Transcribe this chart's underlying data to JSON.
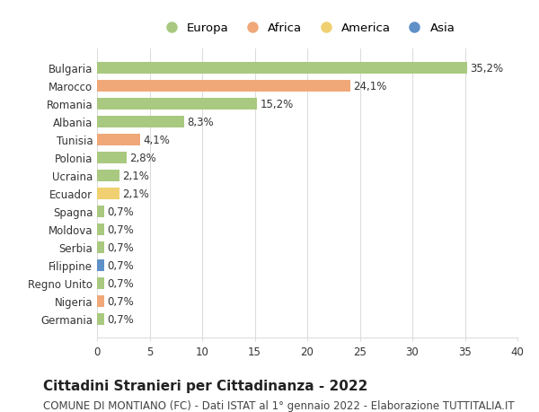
{
  "categories": [
    "Bulgaria",
    "Marocco",
    "Romania",
    "Albania",
    "Tunisia",
    "Polonia",
    "Ucraina",
    "Ecuador",
    "Spagna",
    "Moldova",
    "Serbia",
    "Filippine",
    "Regno Unito",
    "Nigeria",
    "Germania"
  ],
  "values": [
    35.2,
    24.1,
    15.2,
    8.3,
    4.1,
    2.8,
    2.1,
    2.1,
    0.7,
    0.7,
    0.7,
    0.7,
    0.7,
    0.7,
    0.7
  ],
  "labels": [
    "35,2%",
    "24,1%",
    "15,2%",
    "8,3%",
    "4,1%",
    "2,8%",
    "2,1%",
    "2,1%",
    "0,7%",
    "0,7%",
    "0,7%",
    "0,7%",
    "0,7%",
    "0,7%",
    "0,7%"
  ],
  "continents": [
    "Europa",
    "Africa",
    "Europa",
    "Europa",
    "Africa",
    "Europa",
    "Europa",
    "America",
    "Europa",
    "Europa",
    "Europa",
    "Asia",
    "Europa",
    "Africa",
    "Europa"
  ],
  "continent_colors": {
    "Europa": "#a8c97f",
    "Africa": "#f0a878",
    "America": "#f0d070",
    "Asia": "#6090c8"
  },
  "legend_order": [
    "Europa",
    "Africa",
    "America",
    "Asia"
  ],
  "title": "Cittadini Stranieri per Cittadinanza - 2022",
  "subtitle": "COMUNE DI MONTIANO (FC) - Dati ISTAT al 1° gennaio 2022 - Elaborazione TUTTITALIA.IT",
  "xlim": [
    0,
    40
  ],
  "xticks": [
    0,
    5,
    10,
    15,
    20,
    25,
    30,
    35,
    40
  ],
  "background_color": "#ffffff",
  "grid_color": "#dddddd",
  "bar_height": 0.65,
  "label_fontsize": 8.5,
  "tick_fontsize": 8.5,
  "title_fontsize": 11,
  "subtitle_fontsize": 8.5
}
